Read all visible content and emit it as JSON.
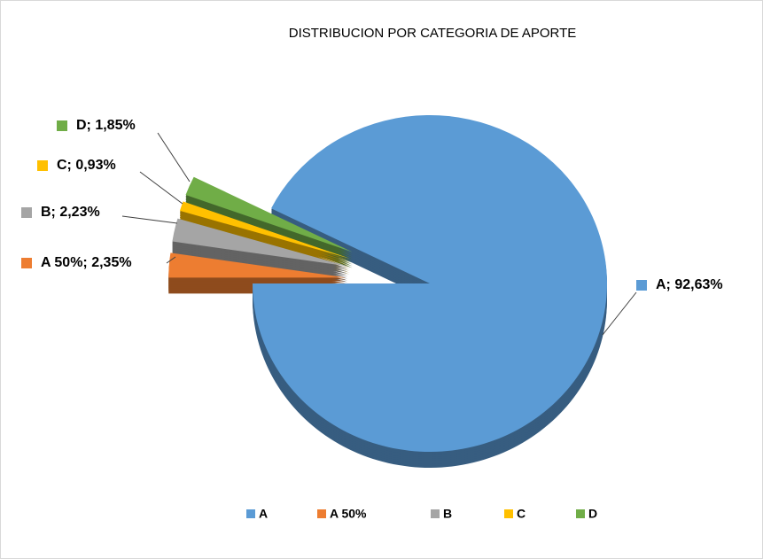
{
  "chart_data": {
    "type": "pie",
    "title": "DISTRIBUCION POR CATEGORIA DE APORTE",
    "categories": [
      "A",
      "A 50%",
      "B",
      "C",
      "D"
    ],
    "values": [
      92.63,
      2.35,
      2.23,
      0.93,
      1.85
    ],
    "value_labels": [
      "A; 92,63%",
      "A 50%; 2,35%",
      "B; 2,23%",
      "C; 0,93%",
      "D; 1,85%"
    ],
    "colors": [
      "#5b9bd5",
      "#ed7d31",
      "#a5a5a5",
      "#ffc000",
      "#70ad47"
    ],
    "legend": "bottom"
  }
}
